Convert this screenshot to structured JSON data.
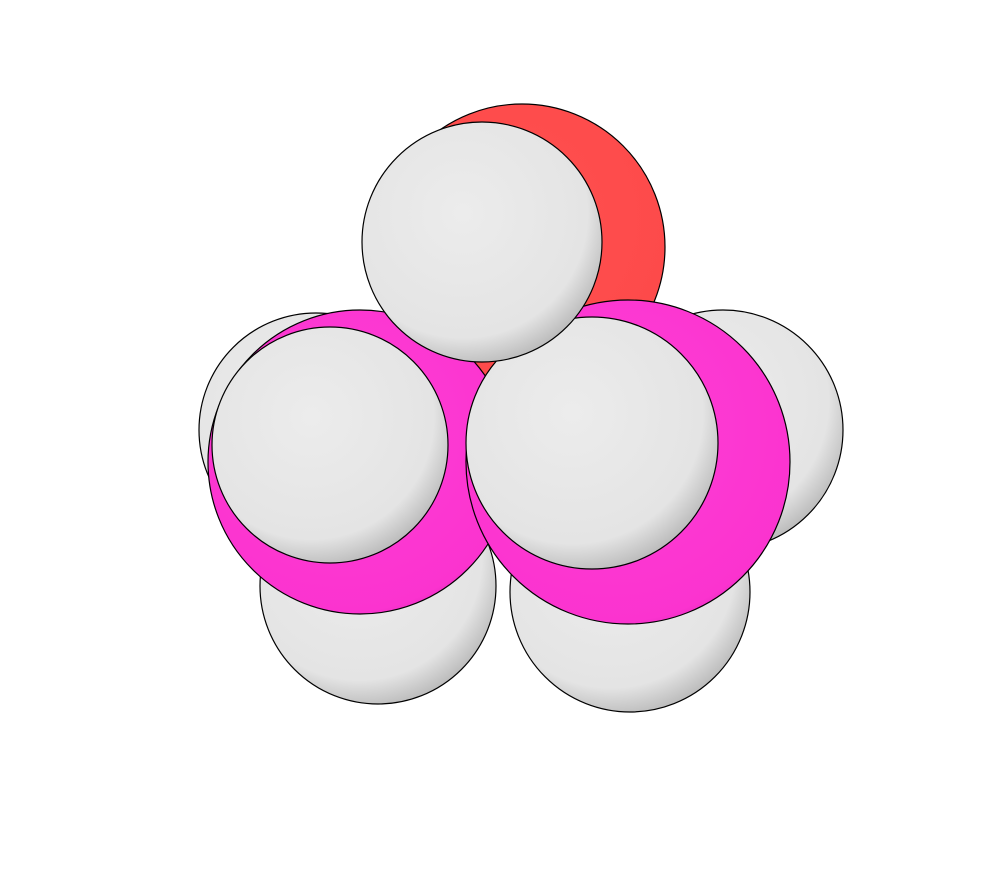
{
  "scene": {
    "background": "#ffffff",
    "style": "space-filling molecular model"
  },
  "elements": {
    "hydrogen": {
      "color": "#e6e6e6"
    },
    "boron": {
      "color": "#ff37d2"
    },
    "oxygen": {
      "color": "#ff4d4d"
    }
  },
  "atoms": [
    {
      "id": "h-bottom-left",
      "element": "hydrogen"
    },
    {
      "id": "h-bottom-right",
      "element": "hydrogen"
    },
    {
      "id": "h-back-right",
      "element": "hydrogen"
    },
    {
      "id": "h-back-left",
      "element": "hydrogen"
    },
    {
      "id": "o-top",
      "element": "oxygen"
    },
    {
      "id": "b-left",
      "element": "boron"
    },
    {
      "id": "b-right",
      "element": "boron"
    },
    {
      "id": "h-front-left",
      "element": "hydrogen"
    },
    {
      "id": "h-front-right",
      "element": "hydrogen"
    },
    {
      "id": "h-top",
      "element": "hydrogen"
    }
  ]
}
